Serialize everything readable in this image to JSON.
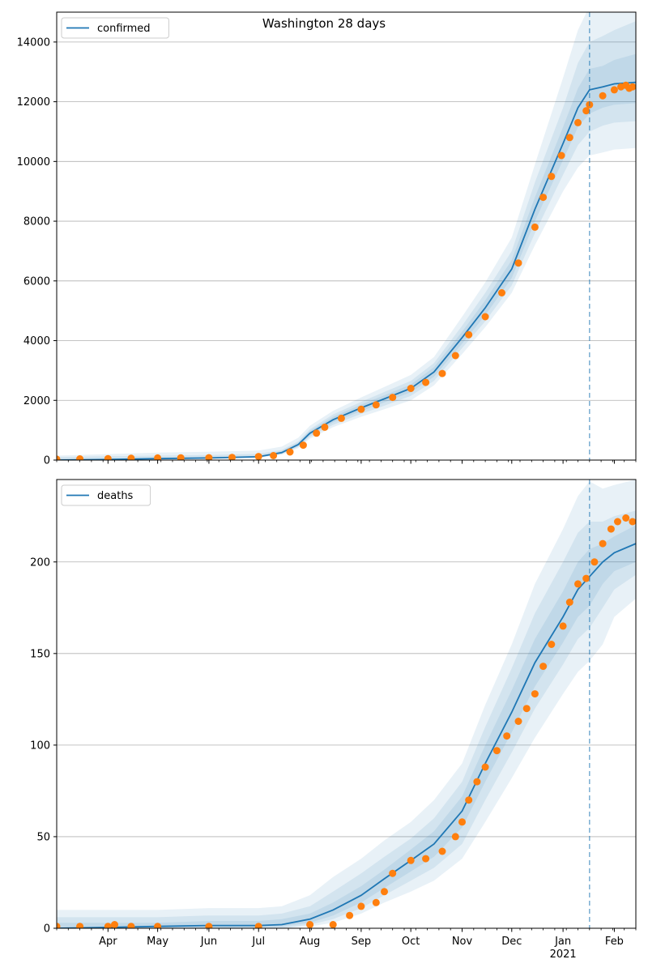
{
  "figure_title": "Washington 28 days",
  "colors": {
    "model_line": "#1f77b4",
    "band": "#1f77b4",
    "observed_points": "#ff7f0e",
    "forecast_start_line": "#1f77b4",
    "grid": "#b0b0b0"
  },
  "x_axis": {
    "start": "2020-03-01",
    "end": "2021-02-14",
    "forecast_start": "2021-01-17",
    "month_ticks": [
      {
        "date": "2020-04-01",
        "label": "Apr",
        "sublabel": ""
      },
      {
        "date": "2020-05-01",
        "label": "May",
        "sublabel": ""
      },
      {
        "date": "2020-06-01",
        "label": "Jun",
        "sublabel": ""
      },
      {
        "date": "2020-07-01",
        "label": "Jul",
        "sublabel": ""
      },
      {
        "date": "2020-08-01",
        "label": "Aug",
        "sublabel": ""
      },
      {
        "date": "2020-09-01",
        "label": "Sep",
        "sublabel": ""
      },
      {
        "date": "2020-10-01",
        "label": "Oct",
        "sublabel": ""
      },
      {
        "date": "2020-11-01",
        "label": "Nov",
        "sublabel": ""
      },
      {
        "date": "2020-12-01",
        "label": "Dec",
        "sublabel": ""
      },
      {
        "date": "2021-01-01",
        "label": "Jan",
        "sublabel": "2021"
      },
      {
        "date": "2021-02-01",
        "label": "Feb",
        "sublabel": ""
      }
    ]
  },
  "chart_data": [
    {
      "type": "line",
      "series": [
        {
          "name": "confirmed",
          "model": {
            "x": [
              "2020-03-01",
              "2020-04-01",
              "2020-05-01",
              "2020-06-01",
              "2020-07-01",
              "2020-07-15",
              "2020-07-25",
              "2020-08-01",
              "2020-08-15",
              "2020-09-01",
              "2020-09-15",
              "2020-10-01",
              "2020-10-15",
              "2020-11-01",
              "2020-11-15",
              "2020-12-01",
              "2020-12-15",
              "2021-01-01",
              "2021-01-10",
              "2021-01-17",
              "2021-01-25",
              "2021-02-01",
              "2021-02-14"
            ],
            "y": [
              0,
              20,
              50,
              70,
              110,
              250,
              520,
              900,
              1350,
              1750,
              2050,
              2400,
              2950,
              4100,
              5100,
              6400,
              8400,
              10600,
              11800,
              12400,
              12500,
              12600,
              12650
            ]
          },
          "bands": [
            {
              "lower": [
                0,
                5,
                20,
                40,
                80,
                180,
                400,
                720,
                1100,
                1450,
                1700,
                2000,
                2500,
                3550,
                4450,
                5600,
                7200,
                9000,
                9800,
                10200,
                10300,
                10400,
                10450
              ],
              "upper": [
                150,
                200,
                250,
                280,
                320,
                450,
                750,
                1150,
                1650,
                2100,
                2450,
                2850,
                3450,
                4800,
                5950,
                7450,
                9900,
                12800,
                14400,
                15200,
                15300,
                15350,
                15400
              ]
            },
            {
              "lower": [
                0,
                10,
                30,
                50,
                90,
                200,
                440,
                780,
                1180,
                1550,
                1820,
                2150,
                2650,
                3750,
                4650,
                5850,
                7600,
                9550,
                10550,
                11000,
                11200,
                11300,
                11350
              ],
              "upper": [
                100,
                130,
                150,
                170,
                210,
                340,
                630,
                1030,
                1530,
                1950,
                2280,
                2650,
                3250,
                4500,
                5600,
                7000,
                9300,
                11800,
                13300,
                14000,
                14200,
                14400,
                14700
              ]
            },
            {
              "lower": [
                0,
                14,
                38,
                58,
                98,
                220,
                470,
                830,
                1260,
                1640,
                1930,
                2270,
                2790,
                3900,
                4850,
                6100,
                8000,
                10050,
                11150,
                11600,
                11800,
                11900,
                11950
              ],
              "upper": [
                50,
                60,
                80,
                100,
                140,
                300,
                580,
                980,
                1450,
                1860,
                2170,
                2530,
                3110,
                4300,
                5350,
                6700,
                8800,
                11150,
                12450,
                13100,
                13200,
                13400,
                13600
              ]
            }
          ],
          "observed": {
            "x": [
              "2020-03-01",
              "2020-03-15",
              "2020-04-01",
              "2020-04-15",
              "2020-05-01",
              "2020-05-15",
              "2020-06-01",
              "2020-06-15",
              "2020-07-01",
              "2020-07-10",
              "2020-07-20",
              "2020-07-28",
              "2020-08-05",
              "2020-08-10",
              "2020-08-20",
              "2020-09-01",
              "2020-09-10",
              "2020-09-20",
              "2020-10-01",
              "2020-10-10",
              "2020-10-20",
              "2020-10-28",
              "2020-11-05",
              "2020-11-15",
              "2020-11-25",
              "2020-12-05",
              "2020-12-15",
              "2020-12-20",
              "2020-12-25",
              "2020-12-31",
              "2021-01-05",
              "2021-01-10",
              "2021-01-15",
              "2021-01-17",
              "2021-01-25",
              "2021-02-01",
              "2021-02-05",
              "2021-02-08",
              "2021-02-10",
              "2021-02-12"
            ],
            "y": [
              30,
              40,
              50,
              60,
              70,
              75,
              80,
              90,
              120,
              150,
              270,
              500,
              900,
              1100,
              1400,
              1700,
              1850,
              2100,
              2400,
              2600,
              2900,
              3500,
              4200,
              4800,
              5600,
              6600,
              7800,
              8800,
              9500,
              10200,
              10800,
              11300,
              11700,
              11900,
              12200,
              12400,
              12500,
              12550,
              12450,
              12500
            ]
          }
        }
      ],
      "ylim": [
        0,
        15000
      ],
      "yticks": [
        0,
        2000,
        4000,
        6000,
        8000,
        10000,
        12000,
        14000
      ],
      "grid": "y",
      "legend_placement": "top-left"
    },
    {
      "type": "line",
      "series": [
        {
          "name": "deaths",
          "model": {
            "x": [
              "2020-03-01",
              "2020-04-01",
              "2020-05-01",
              "2020-06-01",
              "2020-07-01",
              "2020-07-15",
              "2020-08-01",
              "2020-08-15",
              "2020-09-01",
              "2020-09-15",
              "2020-10-01",
              "2020-10-15",
              "2020-11-01",
              "2020-11-15",
              "2020-12-01",
              "2020-12-15",
              "2021-01-01",
              "2021-01-10",
              "2021-01-17",
              "2021-01-25",
              "2021-02-01",
              "2021-02-14"
            ],
            "y": [
              0,
              0.5,
              1,
              1.5,
              1.5,
              2,
              5,
              10,
              18,
              27,
              37,
              46,
              64,
              90,
              118,
              145,
              170,
              185,
              192,
              200,
              205,
              210
            ]
          },
          "bands": [
            {
              "lower": [
                0,
                0,
                0,
                0,
                0,
                0,
                1,
                3,
                8,
                14,
                20,
                26,
                38,
                58,
                82,
                104,
                128,
                140,
                146,
                155,
                170,
                180
              ],
              "upper": [
                10,
                10,
                10,
                11,
                11,
                12,
                18,
                28,
                38,
                48,
                58,
                70,
                90,
                122,
                155,
                188,
                218,
                236,
                244,
                240,
                242,
                245
              ]
            },
            {
              "lower": [
                0,
                0,
                0,
                0,
                0,
                0,
                2,
                5,
                11,
                18,
                26,
                33,
                46,
                70,
                96,
                120,
                144,
                158,
                164,
                175,
                185,
                193
              ],
              "upper": [
                6,
                6,
                6,
                7,
                7,
                8,
                12,
                20,
                30,
                39,
                49,
                60,
                80,
                110,
                142,
                172,
                200,
                216,
                222,
                222,
                225,
                228
              ]
            },
            {
              "lower": [
                0,
                0,
                0,
                0,
                0.5,
                1,
                3,
                7,
                14,
                22,
                31,
                39,
                55,
                80,
                107,
                132,
                156,
                170,
                176,
                188,
                195,
                200
              ],
              "upper": [
                3,
                3,
                3,
                4,
                4,
                5,
                8,
                14,
                23,
                32,
                43,
                53,
                72,
                100,
                130,
                158,
                184,
                200,
                207,
                210,
                214,
                220
              ]
            }
          ],
          "observed": {
            "x": [
              "2020-03-01",
              "2020-03-15",
              "2020-04-01",
              "2020-04-05",
              "2020-04-15",
              "2020-05-01",
              "2020-06-01",
              "2020-07-01",
              "2020-08-01",
              "2020-08-15",
              "2020-08-25",
              "2020-09-01",
              "2020-09-10",
              "2020-09-15",
              "2020-09-20",
              "2020-10-01",
              "2020-10-10",
              "2020-10-20",
              "2020-10-28",
              "2020-11-01",
              "2020-11-05",
              "2020-11-10",
              "2020-11-15",
              "2020-11-22",
              "2020-11-28",
              "2020-12-05",
              "2020-12-10",
              "2020-12-15",
              "2020-12-20",
              "2020-12-25",
              "2021-01-01",
              "2021-01-05",
              "2021-01-10",
              "2021-01-15",
              "2021-01-20",
              "2021-01-25",
              "2021-01-30",
              "2021-02-03",
              "2021-02-08",
              "2021-02-12"
            ],
            "y": [
              1,
              1,
              1,
              2,
              1,
              1,
              1,
              1,
              2,
              2,
              7,
              12,
              14,
              20,
              30,
              37,
              38,
              42,
              50,
              58,
              70,
              80,
              88,
              97,
              105,
              113,
              120,
              128,
              143,
              155,
              165,
              178,
              188,
              191,
              200,
              210,
              218,
              222,
              224,
              222
            ]
          }
        }
      ],
      "ylim": [
        0,
        245
      ],
      "yticks": [
        0,
        50,
        100,
        150,
        200
      ],
      "grid": "y",
      "legend_placement": "top-left"
    }
  ]
}
